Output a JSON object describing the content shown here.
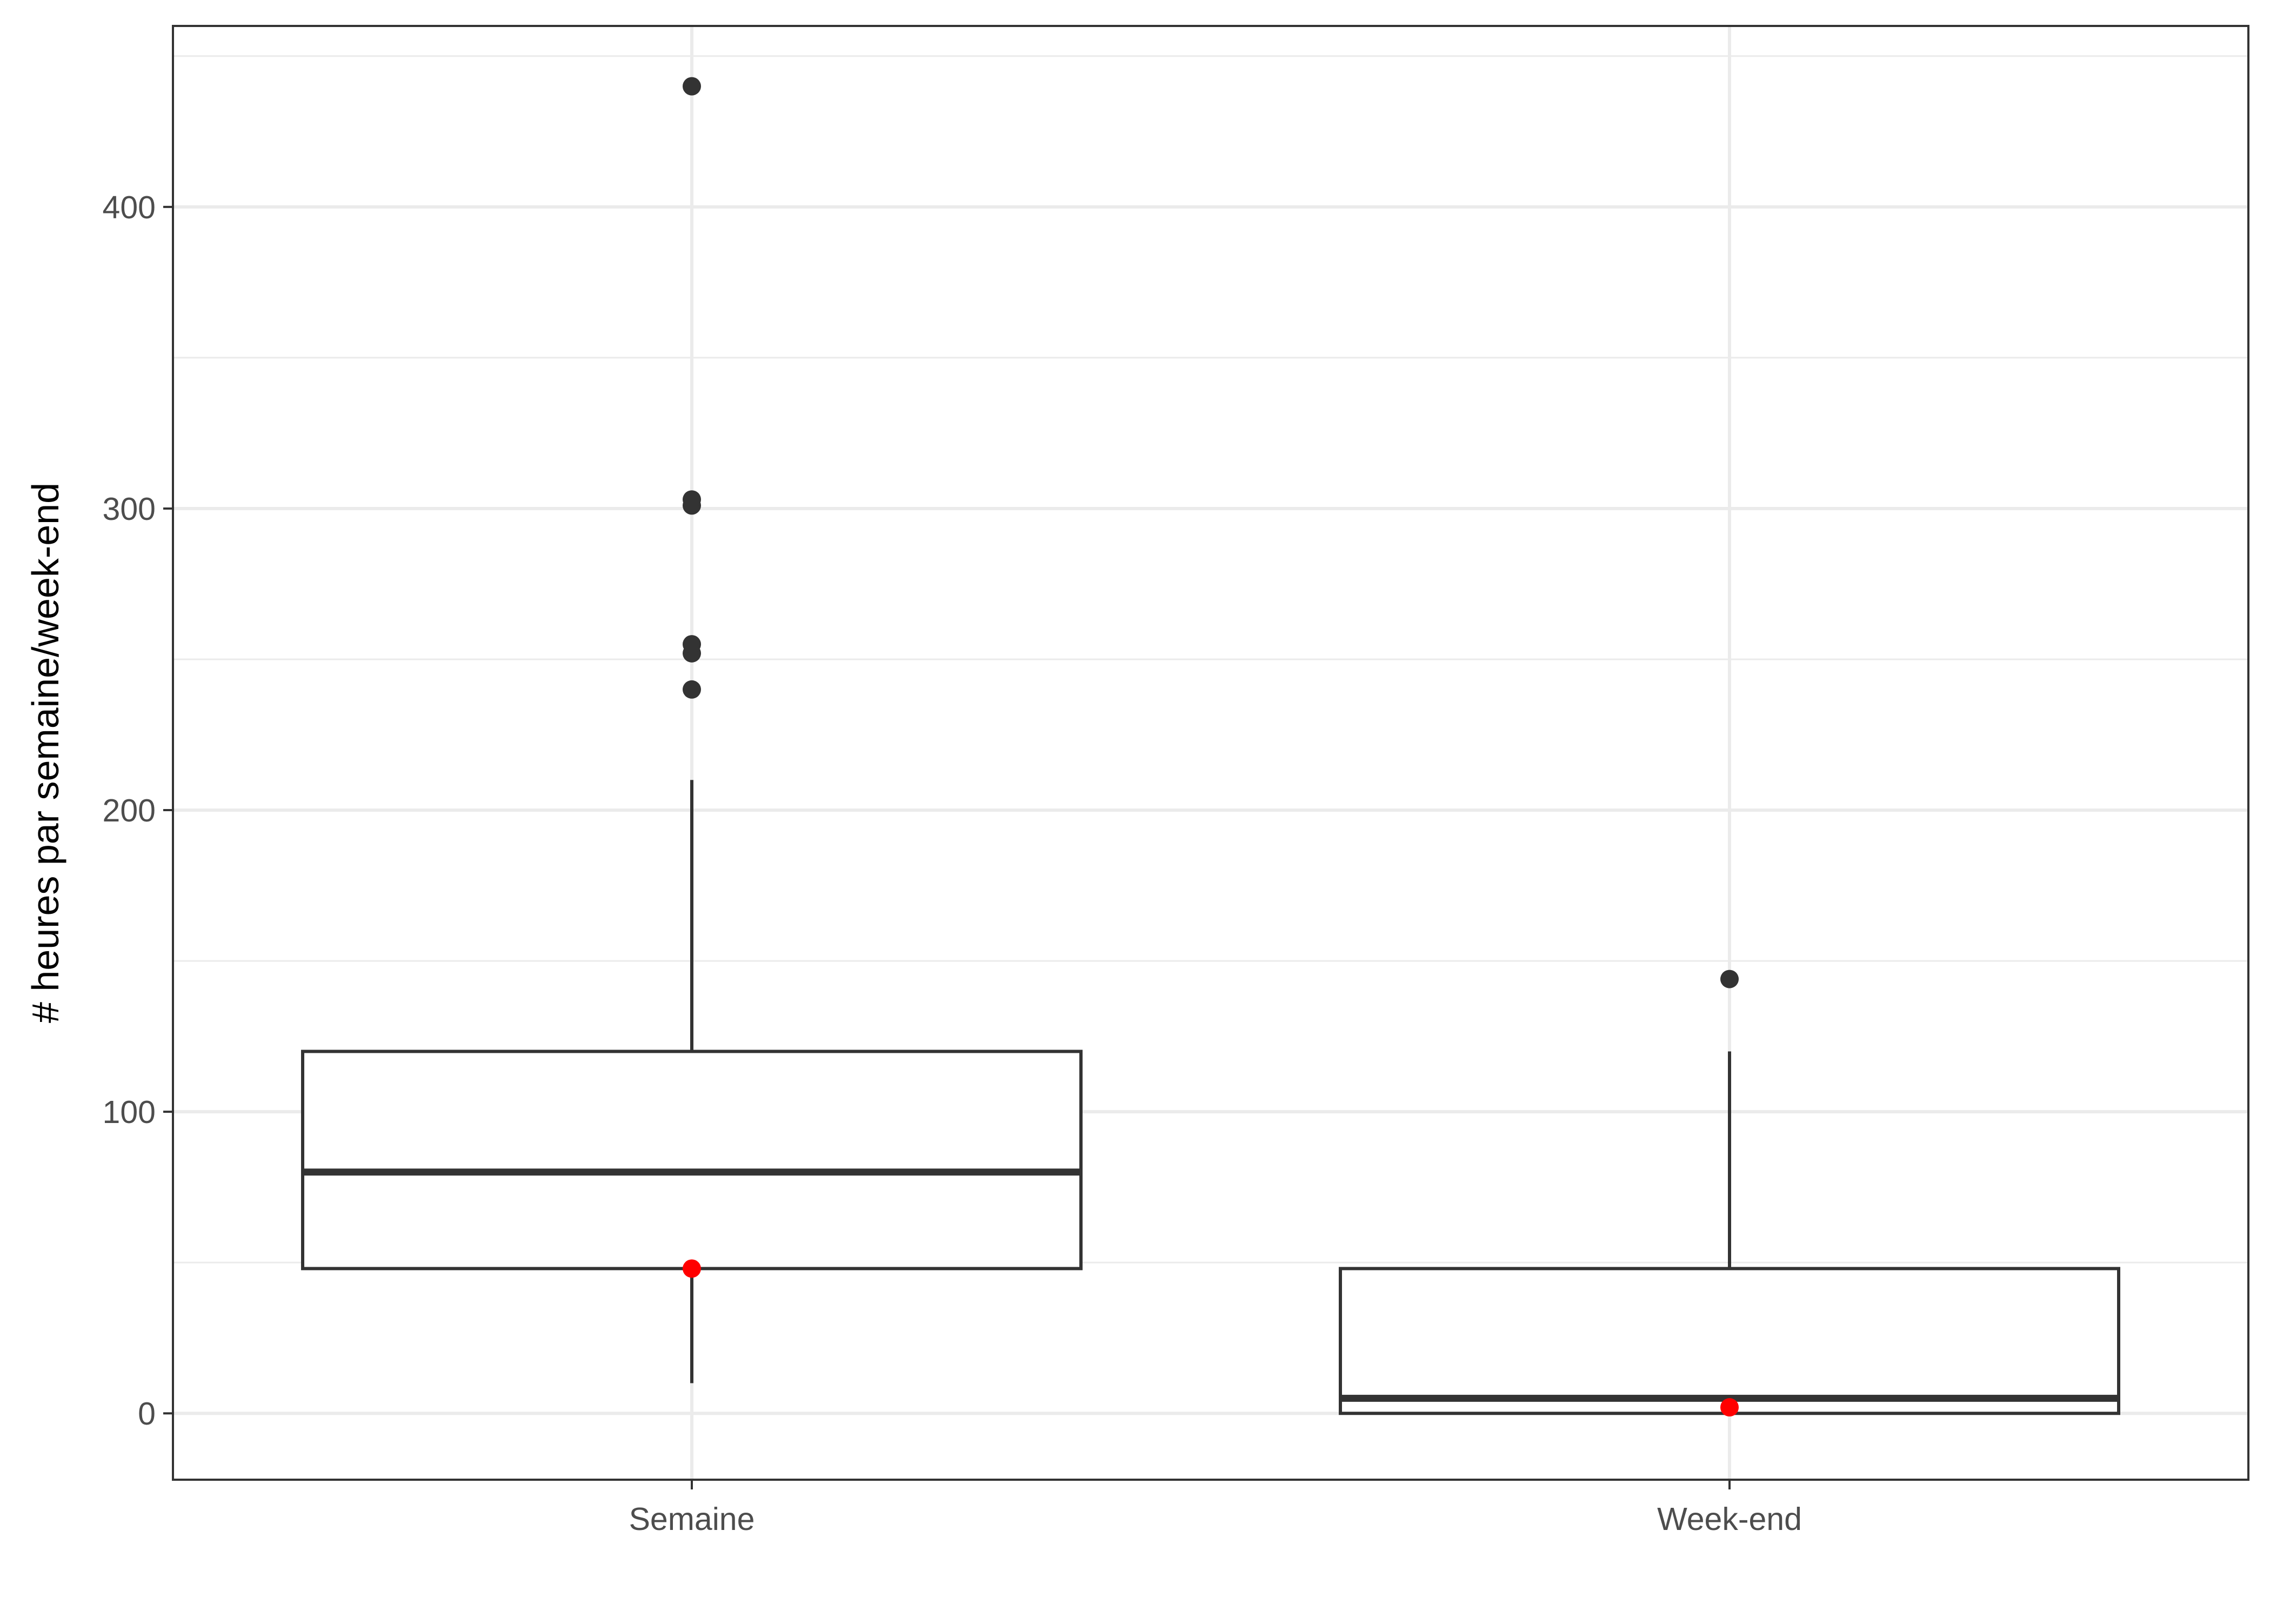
{
  "chart_data": {
    "type": "boxplot",
    "title": "",
    "xlabel": "",
    "ylabel": "# heures par semaine/week-end",
    "ylim": [
      -22,
      460
    ],
    "yticks": [
      0,
      100,
      200,
      300,
      400
    ],
    "y_minor_gridlines": [
      50,
      150,
      250,
      350,
      450
    ],
    "grid": true,
    "theme": "bw",
    "colors": {
      "box_stroke": "#333333",
      "outlier": "#333333",
      "highlight_point": "#ff0000",
      "grid": "#ebebeb",
      "panel_border": "#333333",
      "tick_label": "#4d4d4d",
      "axis_title": "#000000"
    },
    "categories": [
      "Semaine",
      "Week-end"
    ],
    "boxes": [
      {
        "category": "Semaine",
        "whisker_low": 10,
        "q1": 48,
        "median": 80,
        "q3": 120,
        "whisker_high": 210,
        "outliers": [
          240,
          252,
          255,
          301,
          303,
          440
        ],
        "highlight": 48
      },
      {
        "category": "Week-end",
        "whisker_low": 0,
        "q1": 0,
        "median": 5,
        "q3": 48,
        "whisker_high": 120,
        "outliers": [
          144
        ],
        "highlight": 2
      }
    ]
  }
}
